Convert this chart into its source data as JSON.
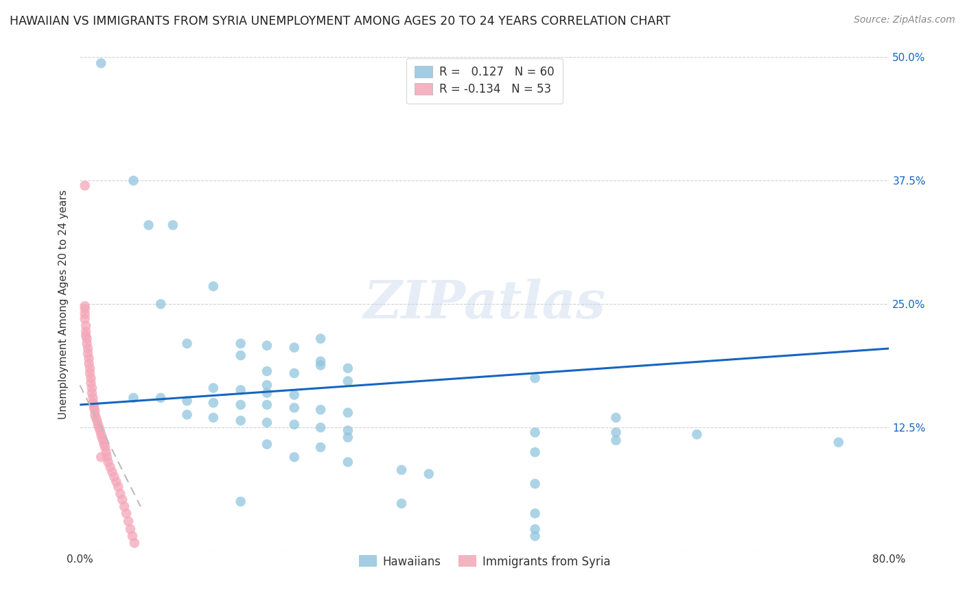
{
  "title": "HAWAIIAN VS IMMIGRANTS FROM SYRIA UNEMPLOYMENT AMONG AGES 20 TO 24 YEARS CORRELATION CHART",
  "source": "Source: ZipAtlas.com",
  "ylabel": "Unemployment Among Ages 20 to 24 years",
  "xlim": [
    0.0,
    0.8
  ],
  "ylim": [
    0.0,
    0.5
  ],
  "xticks": [
    0.0,
    0.2,
    0.4,
    0.6,
    0.8
  ],
  "xticklabels": [
    "0.0%",
    "",
    "",
    "",
    "80.0%"
  ],
  "yticks": [
    0.0,
    0.125,
    0.25,
    0.375,
    0.5
  ],
  "yticklabels_right": [
    "",
    "12.5%",
    "25.0%",
    "37.5%",
    "50.0%"
  ],
  "legend_r_val_hawaiian": "0.127",
  "legend_n_hawaiian": "60",
  "legend_r_val_syria": "-0.134",
  "legend_n_syria": "53",
  "legend_labels": [
    "Hawaiians",
    "Immigrants from Syria"
  ],
  "hawaiian_color": "#92c5de",
  "syria_color": "#f4a6b8",
  "hawaiian_line_color": "#1565c0",
  "syria_line_color": "#cccccc",
  "watermark": "ZIPatlas",
  "hawaiian_scatter": [
    [
      0.021,
      0.494
    ],
    [
      0.053,
      0.375
    ],
    [
      0.068,
      0.33
    ],
    [
      0.092,
      0.33
    ],
    [
      0.132,
      0.268
    ],
    [
      0.08,
      0.25
    ],
    [
      0.238,
      0.215
    ],
    [
      0.159,
      0.21
    ],
    [
      0.106,
      0.21
    ],
    [
      0.185,
      0.208
    ],
    [
      0.212,
      0.206
    ],
    [
      0.159,
      0.198
    ],
    [
      0.238,
      0.192
    ],
    [
      0.238,
      0.188
    ],
    [
      0.265,
      0.185
    ],
    [
      0.185,
      0.182
    ],
    [
      0.212,
      0.18
    ],
    [
      0.45,
      0.175
    ],
    [
      0.265,
      0.172
    ],
    [
      0.185,
      0.168
    ],
    [
      0.132,
      0.165
    ],
    [
      0.159,
      0.163
    ],
    [
      0.185,
      0.16
    ],
    [
      0.212,
      0.158
    ],
    [
      0.053,
      0.155
    ],
    [
      0.08,
      0.155
    ],
    [
      0.106,
      0.152
    ],
    [
      0.132,
      0.15
    ],
    [
      0.159,
      0.148
    ],
    [
      0.185,
      0.148
    ],
    [
      0.212,
      0.145
    ],
    [
      0.238,
      0.143
    ],
    [
      0.265,
      0.14
    ],
    [
      0.106,
      0.138
    ],
    [
      0.132,
      0.135
    ],
    [
      0.159,
      0.132
    ],
    [
      0.185,
      0.13
    ],
    [
      0.212,
      0.128
    ],
    [
      0.238,
      0.125
    ],
    [
      0.265,
      0.122
    ],
    [
      0.45,
      0.12
    ],
    [
      0.53,
      0.12
    ],
    [
      0.61,
      0.118
    ],
    [
      0.265,
      0.115
    ],
    [
      0.53,
      0.112
    ],
    [
      0.185,
      0.108
    ],
    [
      0.238,
      0.105
    ],
    [
      0.45,
      0.1
    ],
    [
      0.212,
      0.095
    ],
    [
      0.265,
      0.09
    ],
    [
      0.318,
      0.082
    ],
    [
      0.345,
      0.078
    ],
    [
      0.45,
      0.068
    ],
    [
      0.159,
      0.05
    ],
    [
      0.318,
      0.048
    ],
    [
      0.45,
      0.022
    ],
    [
      0.45,
      0.015
    ],
    [
      0.45,
      0.038
    ],
    [
      0.53,
      0.135
    ],
    [
      0.75,
      0.11
    ]
  ],
  "syria_scatter": [
    [
      0.005,
      0.37
    ],
    [
      0.005,
      0.248
    ],
    [
      0.005,
      0.245
    ],
    [
      0.005,
      0.24
    ],
    [
      0.005,
      0.235
    ],
    [
      0.006,
      0.228
    ],
    [
      0.006,
      0.222
    ],
    [
      0.006,
      0.218
    ],
    [
      0.007,
      0.215
    ],
    [
      0.007,
      0.21
    ],
    [
      0.008,
      0.205
    ],
    [
      0.008,
      0.2
    ],
    [
      0.009,
      0.195
    ],
    [
      0.009,
      0.19
    ],
    [
      0.01,
      0.185
    ],
    [
      0.01,
      0.18
    ],
    [
      0.011,
      0.175
    ],
    [
      0.011,
      0.17
    ],
    [
      0.012,
      0.165
    ],
    [
      0.012,
      0.16
    ],
    [
      0.013,
      0.155
    ],
    [
      0.013,
      0.15
    ],
    [
      0.014,
      0.148
    ],
    [
      0.014,
      0.145
    ],
    [
      0.015,
      0.142
    ],
    [
      0.015,
      0.138
    ],
    [
      0.016,
      0.135
    ],
    [
      0.017,
      0.132
    ],
    [
      0.018,
      0.128
    ],
    [
      0.019,
      0.125
    ],
    [
      0.02,
      0.122
    ],
    [
      0.021,
      0.118
    ],
    [
      0.022,
      0.115
    ],
    [
      0.023,
      0.112
    ],
    [
      0.024,
      0.108
    ],
    [
      0.025,
      0.105
    ],
    [
      0.026,
      0.1
    ],
    [
      0.027,
      0.095
    ],
    [
      0.028,
      0.09
    ],
    [
      0.03,
      0.085
    ],
    [
      0.032,
      0.08
    ],
    [
      0.034,
      0.075
    ],
    [
      0.036,
      0.07
    ],
    [
      0.038,
      0.065
    ],
    [
      0.04,
      0.058
    ],
    [
      0.042,
      0.052
    ],
    [
      0.044,
      0.045
    ],
    [
      0.046,
      0.038
    ],
    [
      0.048,
      0.03
    ],
    [
      0.05,
      0.022
    ],
    [
      0.052,
      0.015
    ],
    [
      0.054,
      0.008
    ],
    [
      0.021,
      0.095
    ]
  ],
  "hawaiian_trend_x": [
    0.0,
    0.8
  ],
  "hawaiian_trend_y": [
    0.148,
    0.205
  ],
  "syria_trend_x": [
    0.0,
    0.06
  ],
  "syria_trend_y": [
    0.168,
    0.045
  ]
}
